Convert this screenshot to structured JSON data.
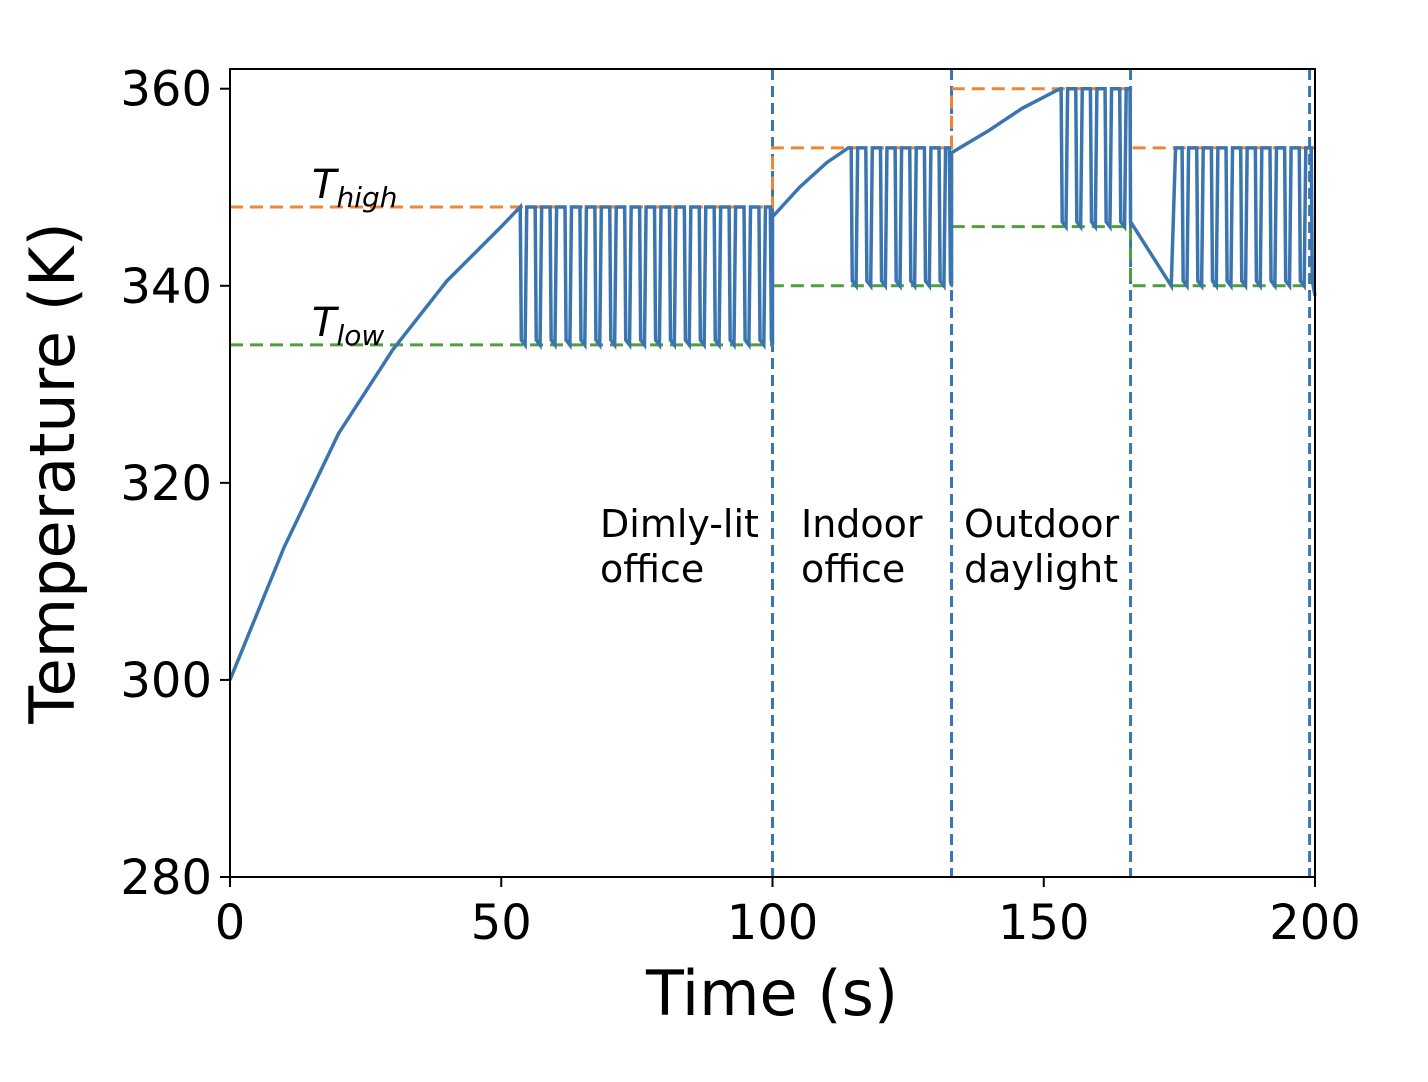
{
  "chart_data": {
    "type": "line",
    "xlabel": "Time (s)",
    "ylabel": "Temperature (K)",
    "xlim": [
      0,
      200
    ],
    "ylim": [
      280,
      362
    ],
    "xticks": [
      0,
      50,
      100,
      150,
      200
    ],
    "yticks": [
      280,
      300,
      320,
      340,
      360
    ],
    "grid": false,
    "series": [
      {
        "color": "#3b75af",
        "dashed": false,
        "x": [
          0,
          10,
          20,
          30,
          40,
          50,
          53.5,
          53.7,
          54.4,
          54.7,
          56.25,
          56.45,
          57.15,
          57.45,
          59,
          59.2,
          59.9,
          60.2,
          61.75,
          61.95,
          62.65,
          62.95,
          64.5,
          64.7,
          65.4,
          65.7,
          67.25,
          67.45,
          68.15,
          68.45,
          70,
          70.2,
          70.9,
          71.2,
          72.75,
          72.95,
          73.65,
          73.95,
          75.5,
          75.7,
          76.4,
          76.7,
          78.25,
          78.45,
          79.15,
          79.45,
          81,
          81.2,
          81.9,
          82.2,
          83.75,
          83.95,
          84.65,
          84.95,
          86.5,
          86.7,
          87.4,
          87.7,
          89.25,
          89.45,
          90.15,
          90.45,
          92,
          92.2,
          92.9,
          93.2,
          94.75,
          94.95,
          95.65,
          95.95,
          97.5,
          97.7,
          98.4,
          98.7,
          99.6,
          99.8,
          100,
          100,
          105,
          110,
          114,
          114.5,
          114.7,
          115.4,
          115.7,
          117.2,
          117.4,
          118.1,
          118.4,
          119.9,
          120.1,
          120.8,
          121.1,
          122.6,
          122.8,
          123.5,
          123.8,
          125.3,
          125.5,
          126.2,
          126.5,
          128,
          128.2,
          128.9,
          129.2,
          130.7,
          130.9,
          131.6,
          131.9,
          132.6,
          132.8,
          133,
          133,
          140,
          146,
          153,
          153.2,
          153.4,
          154.1,
          154.4,
          155.9,
          156.1,
          156.8,
          157.1,
          158.6,
          158.8,
          159.5,
          159.8,
          161.3,
          161.5,
          162.2,
          162.5,
          164,
          164.2,
          164.9,
          165.2,
          165.9,
          166,
          173.5,
          174.3,
          175.5,
          175.7,
          176.4,
          176.7,
          178.2,
          178.4,
          179.1,
          179.4,
          180.9,
          181.1,
          181.8,
          182.1,
          183.6,
          183.8,
          184.5,
          184.8,
          186.3,
          186.5,
          187.2,
          187.5,
          189,
          189.2,
          189.9,
          190.2,
          191.7,
          191.9,
          192.6,
          192.9,
          194.4,
          194.6,
          195.3,
          195.6,
          197.1,
          197.3,
          198,
          198.3,
          199.3,
          199.5,
          200
        ],
        "values": [
          300,
          313.5,
          325,
          333.5,
          340.5,
          346,
          348,
          334.5,
          334,
          348,
          348,
          334.5,
          334,
          348,
          348,
          334.5,
          334,
          348,
          348,
          334.5,
          334,
          348,
          348,
          334.5,
          334,
          348,
          348,
          334.5,
          334,
          348,
          348,
          334.5,
          334,
          348,
          348,
          334.5,
          334,
          348,
          348,
          334.5,
          334,
          348,
          348,
          334.5,
          334,
          348,
          348,
          334.5,
          334,
          348,
          348,
          334.5,
          334,
          348,
          348,
          334.5,
          334,
          348,
          348,
          334.5,
          334,
          348,
          348,
          334.5,
          334,
          348,
          348,
          334.5,
          334,
          348,
          348,
          334.5,
          334,
          348,
          348,
          334.5,
          334,
          347,
          350,
          352.5,
          354,
          354,
          340.5,
          340,
          354,
          354,
          340.5,
          340,
          354,
          354,
          340.5,
          340,
          354,
          354,
          340.5,
          340,
          354,
          354,
          340.5,
          340,
          354,
          354,
          340.5,
          340,
          354,
          354,
          340.5,
          340,
          354,
          354,
          340.5,
          340,
          353.5,
          355.8,
          358,
          360,
          360,
          346.5,
          346,
          360,
          360,
          346.5,
          346,
          360,
          360,
          346.5,
          346,
          360,
          360,
          346.5,
          346,
          360,
          360,
          346.5,
          346,
          360,
          360,
          346.5,
          340,
          354,
          354,
          340.5,
          340,
          354,
          354,
          340.5,
          340,
          354,
          354,
          340.5,
          340,
          354,
          354,
          340.5,
          340,
          354,
          354,
          340.5,
          340,
          354,
          354,
          340.5,
          340,
          354,
          354,
          340.5,
          340,
          354,
          354,
          340.5,
          340,
          354,
          354,
          340.5,
          340,
          354,
          354,
          340.5,
          339
        ]
      },
      {
        "color": "#ef8636",
        "dashed": true,
        "x": [
          0,
          100,
          100,
          133,
          133,
          166,
          166,
          200
        ],
        "values": [
          348,
          348,
          354,
          354,
          360,
          360,
          354,
          354
        ]
      },
      {
        "color": "#519e3e",
        "dashed": true,
        "x": [
          0,
          100,
          100,
          133,
          133,
          166,
          166,
          200
        ],
        "values": [
          334,
          334,
          340,
          340,
          346,
          346,
          340,
          340
        ]
      }
    ],
    "vlines": {
      "color": "#3b75af",
      "x": [
        100,
        133,
        166,
        199
      ]
    },
    "annotations": [
      {
        "text": "T",
        "subscript": "high"
      },
      {
        "text": "T",
        "subscript": "low"
      },
      {
        "lines": [
          "Dimly-lit",
          "office"
        ]
      },
      {
        "lines": [
          "Indoor",
          "office"
        ]
      },
      {
        "lines": [
          "Outdoor",
          "daylight"
        ]
      }
    ]
  }
}
